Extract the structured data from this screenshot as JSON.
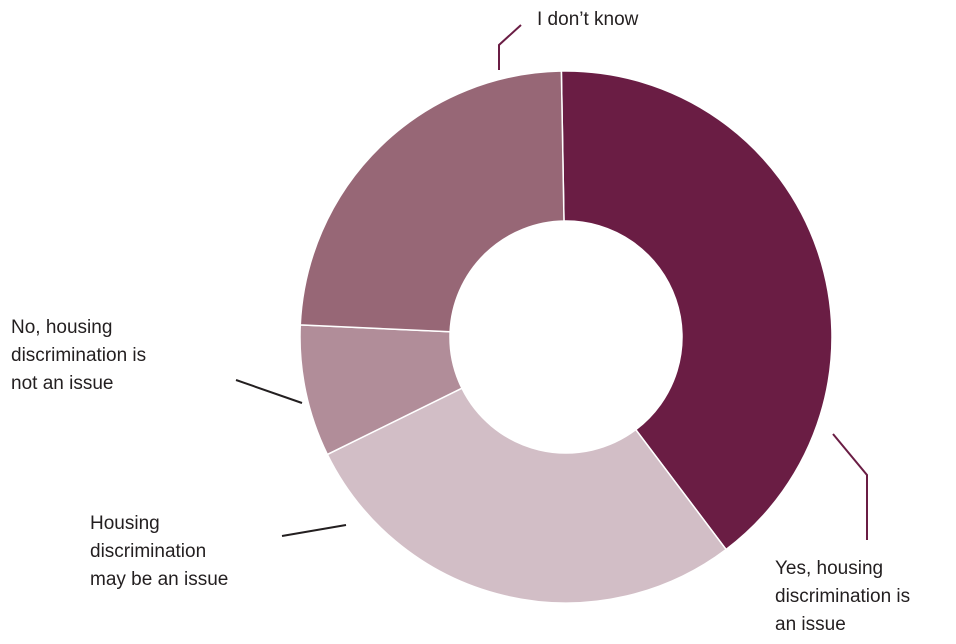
{
  "chart_data": {
    "type": "pie",
    "variant": "donut",
    "title": "",
    "slices": [
      {
        "label": "Yes, housing discrimination is an issue",
        "label_lines": [
          "Yes, housing",
          "discrimination is",
          "an issue"
        ],
        "value": 40,
        "color": "#6a1d44"
      },
      {
        "label": "Housing discrimination may be an issue",
        "label_lines": [
          "Housing",
          "discrimination",
          "may be an issue"
        ],
        "value": 28,
        "color": "#d2bec6"
      },
      {
        "label": "No, housing discrimination is not an issue",
        "label_lines": [
          "No, housing",
          "discrimination is",
          "not an issue"
        ],
        "value": 8,
        "color": "#b18d99"
      },
      {
        "label": "I don’t know",
        "label_lines": [
          "I don’t know"
        ],
        "value": 24,
        "color": "#976776"
      }
    ],
    "leader_colors": {
      "yes": "#6a1d44",
      "may": "#231f20",
      "no": "#231f20",
      "idk": "#6a1d44"
    },
    "legend": "none"
  }
}
